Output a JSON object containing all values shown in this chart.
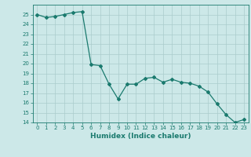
{
  "x": [
    0,
    1,
    2,
    3,
    4,
    5,
    6,
    7,
    8,
    9,
    10,
    11,
    12,
    13,
    14,
    15,
    16,
    17,
    18,
    19,
    20,
    21,
    22,
    23
  ],
  "y": [
    25.0,
    24.7,
    24.8,
    25.0,
    25.2,
    25.3,
    19.9,
    19.8,
    17.9,
    16.4,
    17.9,
    17.9,
    18.5,
    18.6,
    18.1,
    18.4,
    18.1,
    18.0,
    17.7,
    17.1,
    15.9,
    14.8,
    14.0,
    14.3
  ],
  "line_color": "#1a7a6e",
  "bg_color": "#cce8e8",
  "grid_color": "#aacccc",
  "xlabel": "Humidex (Indice chaleur)",
  "ylim": [
    14,
    26
  ],
  "xlim": [
    -0.5,
    23.5
  ],
  "yticks": [
    14,
    15,
    16,
    17,
    18,
    19,
    20,
    21,
    22,
    23,
    24,
    25
  ],
  "xticks": [
    0,
    1,
    2,
    3,
    4,
    5,
    6,
    7,
    8,
    9,
    10,
    11,
    12,
    13,
    14,
    15,
    16,
    17,
    18,
    19,
    20,
    21,
    22,
    23
  ],
  "marker": "D",
  "markersize": 2,
  "linewidth": 0.9,
  "tick_fontsize": 5,
  "xlabel_fontsize": 6.5
}
